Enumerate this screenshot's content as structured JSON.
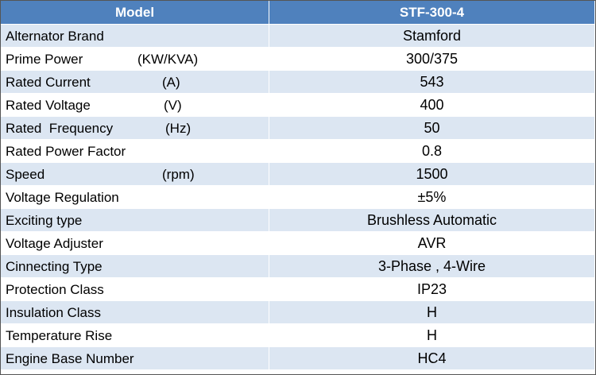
{
  "table": {
    "header": [
      "Model",
      "STF-300-4"
    ],
    "rows": [
      {
        "label": "Alternator Brand",
        "value": "Stamford"
      },
      {
        "label": "Prime Power",
        "unit": "(KW/KVA)",
        "value": "300/375"
      },
      {
        "label": "Rated Current",
        "unit": "(A)",
        "value": "543"
      },
      {
        "label": "Rated Voltage",
        "unit": "(V)",
        "value": "400"
      },
      {
        "label": "Rated  Frequency",
        "unit": "(Hz)",
        "value": "50"
      },
      {
        "label": "Rated Power Factor",
        "value": "0.8"
      },
      {
        "label": "Speed",
        "unit": "(rpm)",
        "value": "1500"
      },
      {
        "label": "Voltage Regulation",
        "value": "±5%"
      },
      {
        "label": "Exciting type",
        "value": "Brushless Automatic"
      },
      {
        "label": "Voltage Adjuster",
        "value": "AVR"
      },
      {
        "label": "Cinnecting Type",
        "value": "3-Phase , 4-Wire"
      },
      {
        "label": "Protection Class",
        "value": "IP23"
      },
      {
        "label": "Insulation Class",
        "value": "H"
      },
      {
        "label": "Temperature Rise",
        "value": "H"
      },
      {
        "label": "Engine Base Number",
        "value": "HC4"
      }
    ]
  }
}
